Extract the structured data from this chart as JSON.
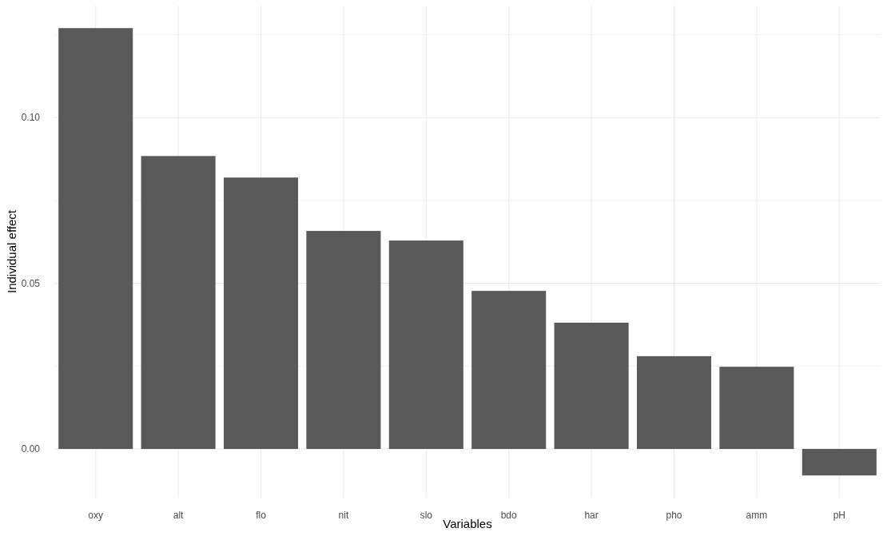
{
  "chart_data": {
    "type": "bar",
    "xlabel": "Variables",
    "ylabel": "Individual effect",
    "categories": [
      "oxy",
      "alt",
      "flo",
      "nit",
      "slo",
      "bdo",
      "har",
      "pho",
      "amm",
      "pH"
    ],
    "values": [
      0.127,
      0.0884,
      0.0819,
      0.0658,
      0.0629,
      0.0477,
      0.0381,
      0.028,
      0.0248,
      -0.008
    ],
    "color": "#595959",
    "ylim": [
      -0.0147,
      0.1338
    ],
    "yticks": [
      {
        "value": 0,
        "label": "0.00"
      },
      {
        "value": 0.025,
        "label": null
      },
      {
        "value": 0.05,
        "label": "0.05"
      },
      {
        "value": 0.075,
        "label": null
      },
      {
        "value": 0.1,
        "label": "0.10"
      },
      {
        "value": 0.125,
        "label": null
      }
    ],
    "grid": true
  }
}
